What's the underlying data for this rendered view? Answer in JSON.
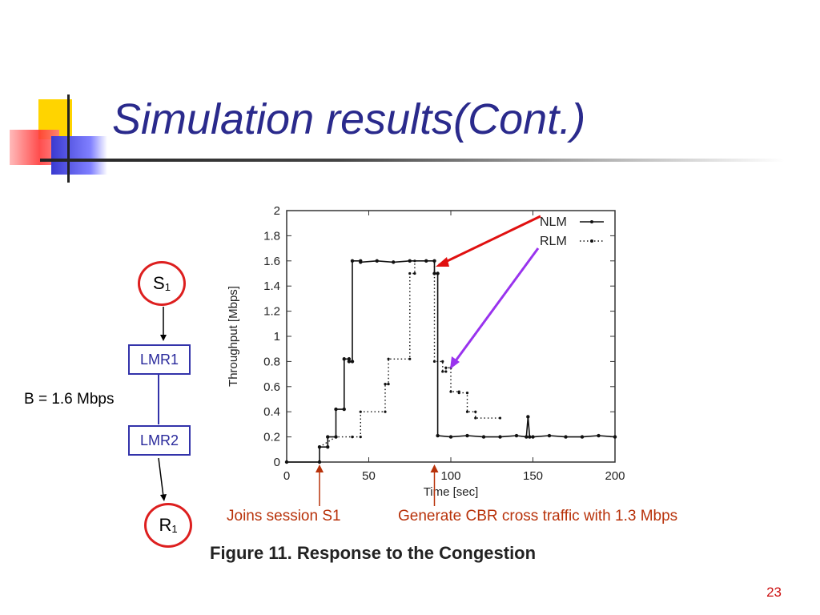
{
  "slide": {
    "title": "Simulation results(Cont.)",
    "page_number": "23",
    "accent_colors": {
      "title": "#2a2a8c",
      "yellow": "#ffd400",
      "red": "#ff3a3a",
      "blue": "#3a3ad0"
    }
  },
  "topology": {
    "source": {
      "label": "S",
      "sub": "1"
    },
    "router1": {
      "label": "LMR1"
    },
    "router2": {
      "label": "LMR2"
    },
    "receiver": {
      "label": "R",
      "sub": "1"
    },
    "bandwidth_label": "B = 1.6 Mbps"
  },
  "annotations": {
    "join": "Joins session S1",
    "cross_traffic": "Generate CBR cross traffic with 1.3 Mbps",
    "figure_caption": "Figure 11. Response to the Congestion"
  },
  "chart_data": {
    "type": "line",
    "xlabel": "Time [sec]",
    "ylabel": "Throughput [Mbps]",
    "xlim": [
      0,
      200
    ],
    "ylim": [
      0,
      2
    ],
    "xticks": [
      0,
      50,
      100,
      150,
      200
    ],
    "yticks": [
      0,
      0.2,
      0.4,
      0.6,
      0.8,
      1,
      1.2,
      1.4,
      1.6,
      1.8,
      2
    ],
    "legend_position": "top-right",
    "series": [
      {
        "name": "NLM",
        "style": "solid",
        "x": [
          0,
          20,
          20,
          25,
          25,
          30,
          30,
          35,
          35,
          38,
          38,
          40,
          40,
          45,
          45,
          55,
          65,
          75,
          85,
          90,
          90,
          92,
          92,
          100,
          110,
          120,
          130,
          140,
          146,
          147,
          148,
          150,
          160,
          170,
          180,
          190,
          200
        ],
        "y": [
          0,
          0,
          0.12,
          0.12,
          0.2,
          0.2,
          0.42,
          0.42,
          0.82,
          0.82,
          0.8,
          0.8,
          1.6,
          1.6,
          1.59,
          1.6,
          1.59,
          1.6,
          1.6,
          1.6,
          1.5,
          1.5,
          0.21,
          0.2,
          0.21,
          0.2,
          0.2,
          0.21,
          0.2,
          0.36,
          0.2,
          0.2,
          0.21,
          0.2,
          0.2,
          0.21,
          0.2
        ]
      },
      {
        "name": "RLM",
        "style": "dotted",
        "x": [
          20,
          30,
          30,
          40,
          40,
          45,
          45,
          60,
          60,
          62,
          62,
          75,
          75,
          78,
          78,
          90,
          90,
          95,
          95,
          97,
          97,
          100,
          100,
          105,
          105,
          110,
          110,
          115,
          115,
          130
        ],
        "y": [
          0.12,
          0.2,
          0.2,
          0.2,
          0.2,
          0.2,
          0.4,
          0.4,
          0.62,
          0.62,
          0.82,
          0.82,
          1.5,
          1.5,
          1.6,
          1.6,
          0.8,
          0.8,
          0.72,
          0.72,
          0.75,
          0.75,
          0.56,
          0.56,
          0.55,
          0.55,
          0.4,
          0.4,
          0.35,
          0.35
        ]
      }
    ],
    "annotations": [
      {
        "label": "Joins session S1",
        "x": 20
      },
      {
        "label": "Generate CBR cross traffic with 1.3 Mbps",
        "x": 90
      }
    ]
  }
}
